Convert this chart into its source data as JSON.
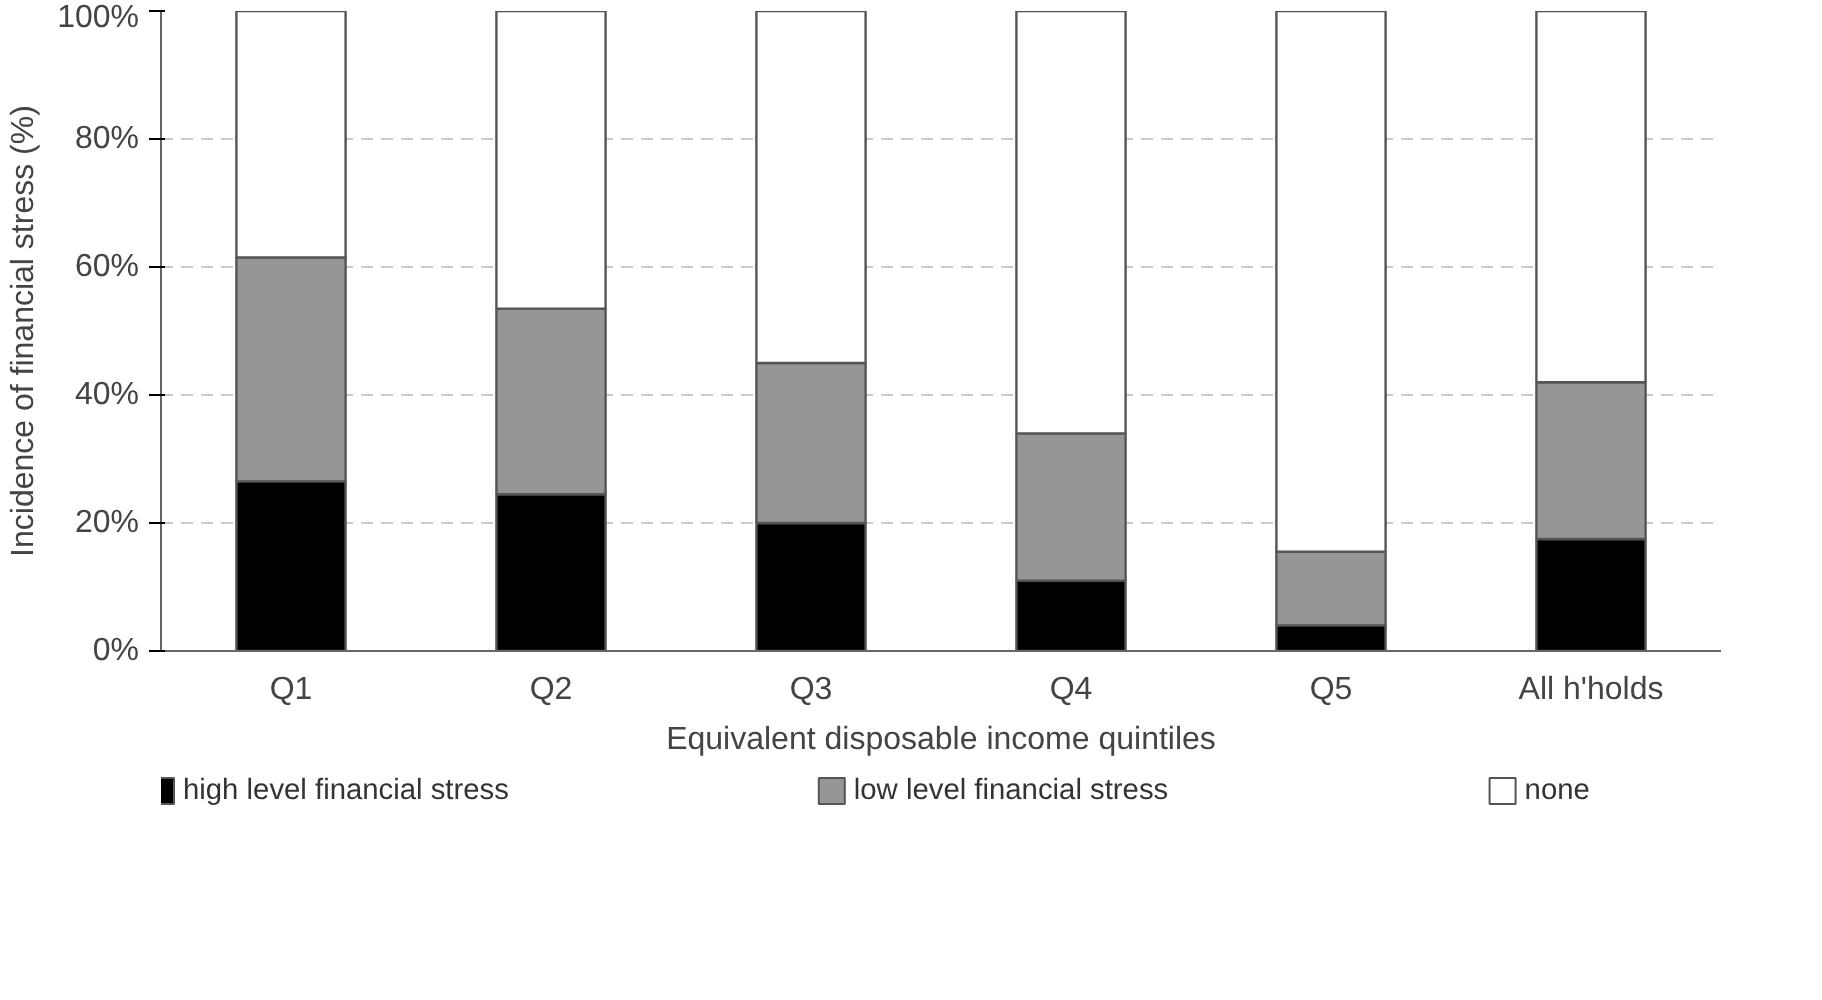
{
  "chart_data": {
    "type": "bar",
    "stacked": true,
    "xlabel": "Equivalent disposable income quintiles",
    "ylabel": "Incidence of financial stress (%)",
    "categories": [
      "Q1",
      "Q2",
      "Q3",
      "Q4",
      "Q5",
      "All h'holds"
    ],
    "series": [
      {
        "name": "high level financial stress",
        "color": "#000000",
        "values": [
          26.5,
          24.5,
          20,
          11,
          4,
          17.5
        ]
      },
      {
        "name": "low level financial stress",
        "color": "#969696",
        "values": [
          35,
          29,
          25,
          23,
          11.5,
          24.5
        ]
      },
      {
        "name": "none",
        "color": "#ffffff",
        "values": [
          38.5,
          46.5,
          55,
          66,
          84.5,
          58
        ]
      }
    ],
    "ylim": [
      0,
      100
    ],
    "yticks": [
      {
        "value": 0,
        "label": "0%"
      },
      {
        "value": 20,
        "label": "20%"
      },
      {
        "value": 40,
        "label": "40%"
      },
      {
        "value": 60,
        "label": "60%"
      },
      {
        "value": 80,
        "label": "80%"
      },
      {
        "value": 100,
        "label": "100%"
      }
    ],
    "grid": "y",
    "legend": "bottom"
  }
}
